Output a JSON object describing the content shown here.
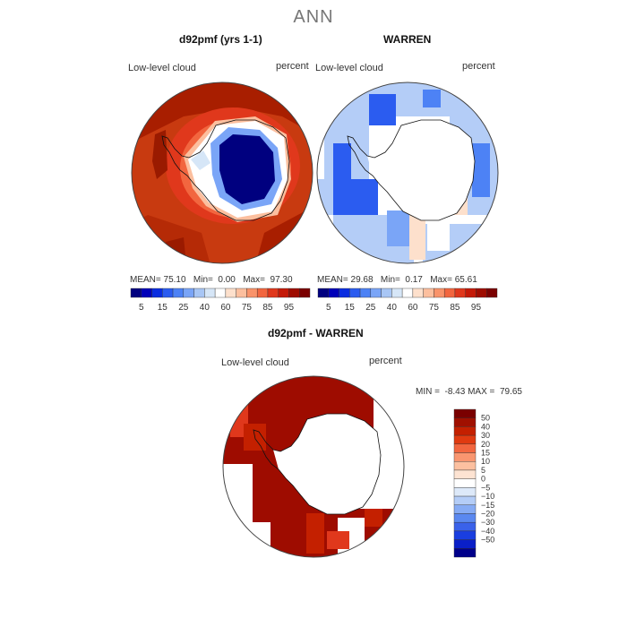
{
  "page_title": "ANN",
  "panels": [
    {
      "title": "d92pmf (yrs 1-1)",
      "variable": "Low-level cloud",
      "units": "percent",
      "stats": {
        "mean_label": "MEAN=",
        "mean": "75.10",
        "min_label": "Min=",
        "min": "0.00",
        "max_label": "Max=",
        "max": "97.30"
      }
    },
    {
      "title": "WARREN",
      "variable": "Low-level cloud",
      "units": "percent",
      "stats": {
        "mean_label": "MEAN=",
        "mean": "29.68",
        "min_label": "Min=",
        "min": "0.17",
        "max_label": "Max=",
        "max": "65.61"
      }
    },
    {
      "title": "d92pmf - WARREN",
      "variable": "Low-level cloud",
      "units": "percent",
      "stats": {
        "min_label": "MIN =",
        "min": "-8.43",
        "max_label": "MAX =",
        "max": "79.65"
      }
    }
  ],
  "colorbar_abs": {
    "colors": [
      "#00007f",
      "#0000b8",
      "#0a2de0",
      "#2b5cf0",
      "#4d82f5",
      "#7aa5f7",
      "#a8c6f5",
      "#d6e6f7",
      "#ffffff",
      "#fde0cc",
      "#fcbf9e",
      "#f9936a",
      "#f2663f",
      "#e0381c",
      "#c41a08",
      "#9e0c00",
      "#7a0000"
    ],
    "tick_labels": [
      "5",
      "15",
      "25",
      "40",
      "60",
      "75",
      "85",
      "95"
    ]
  },
  "colorbar_diff": {
    "colors": [
      "#7a0000",
      "#a01000",
      "#c42000",
      "#e03a10",
      "#f2663f",
      "#f99670",
      "#fcc0a0",
      "#fde3d2",
      "#ffffff",
      "#dde9f9",
      "#b4cdf7",
      "#86abf4",
      "#5a88f0",
      "#3a62ea",
      "#1a3ee0",
      "#0a1fc8",
      "#00008a"
    ],
    "tick_labels": [
      "50",
      "40",
      "30",
      "20",
      "15",
      "10",
      "5",
      "0",
      "−5",
      "−10",
      "−15",
      "−20",
      "−30",
      "−40",
      "−50"
    ]
  },
  "colors": {
    "ocean_warm": "#c83a10",
    "ocean_dark": "#9a1a00",
    "antarctic_core": "#00008a",
    "warren_blue": "#b4cdf7",
    "warren_deep": "#2b5cf0",
    "diff_red": "#9e0c00",
    "coastline": "#111111"
  }
}
